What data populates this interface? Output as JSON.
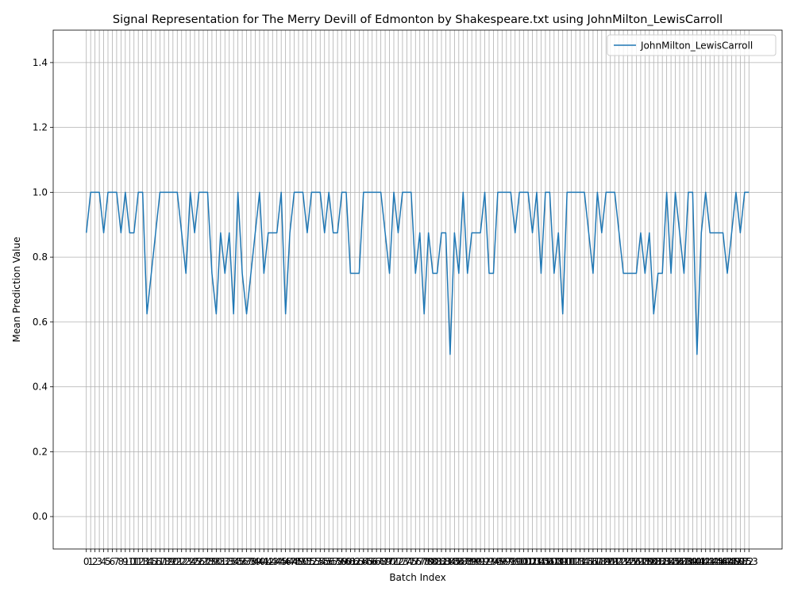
{
  "chart_data": {
    "type": "line",
    "title": "Signal Representation for The Merry Devill of Edmonton by Shakespeare.txt using JohnMilton_LewisCarroll",
    "xlabel": "Batch Index",
    "ylabel": "Mean Prediction Value",
    "x": [
      0,
      1,
      2,
      3,
      4,
      5,
      6,
      7,
      8,
      9,
      10,
      11,
      12,
      13,
      14,
      15,
      16,
      17,
      18,
      19,
      20,
      21,
      22,
      23,
      24,
      25,
      26,
      27,
      28,
      29,
      30,
      31,
      32,
      33,
      34,
      35,
      36,
      37,
      38,
      39,
      40,
      41,
      42,
      43,
      44,
      45,
      46,
      47,
      48,
      49,
      50,
      51,
      52,
      53,
      54,
      55,
      56,
      57,
      58,
      59,
      60,
      61,
      62,
      63,
      64,
      65,
      66,
      67,
      68,
      69,
      70,
      71,
      72,
      73,
      74,
      75,
      76,
      77,
      78,
      79,
      80,
      81,
      82,
      83,
      84,
      85,
      86,
      87,
      88,
      89,
      90,
      91,
      92,
      93,
      94,
      95,
      96,
      97,
      98,
      99,
      100,
      101,
      102,
      103,
      104,
      105,
      106,
      107,
      108,
      109,
      110,
      111,
      112,
      113,
      114,
      115,
      116,
      117,
      118,
      119,
      120,
      121,
      122,
      123,
      124,
      125,
      126,
      127,
      128,
      129,
      130,
      131,
      132,
      133,
      134,
      135,
      136,
      137,
      138,
      139,
      140,
      141,
      142,
      143,
      144,
      145,
      146,
      147,
      148,
      149,
      150,
      151,
      152,
      153
    ],
    "series": [
      {
        "name": "JohnMilton_LewisCarroll",
        "color": "#1f77b4",
        "values": [
          0.875,
          1,
          1,
          1,
          0.875,
          1,
          1,
          1,
          0.875,
          1,
          0.875,
          0.875,
          1,
          1,
          0.625,
          0.75,
          0.875,
          1,
          1,
          1,
          1,
          1,
          0.875,
          0.75,
          1,
          0.875,
          1,
          1,
          1,
          0.75,
          0.625,
          0.875,
          0.75,
          0.875,
          0.625,
          1,
          0.75,
          0.625,
          0.75,
          0.875,
          1,
          0.75,
          0.875,
          0.875,
          0.875,
          1,
          0.625,
          0.875,
          1,
          1,
          1,
          0.875,
          1,
          1,
          1,
          0.875,
          1,
          0.875,
          0.875,
          1,
          1,
          0.75,
          0.75,
          0.75,
          1,
          1,
          1,
          1,
          1,
          0.875,
          0.75,
          1,
          0.875,
          1,
          1,
          1,
          0.75,
          0.875,
          0.625,
          0.875,
          0.75,
          0.75,
          0.875,
          0.875,
          0.5,
          0.875,
          0.75,
          1,
          0.75,
          0.875,
          0.875,
          0.875,
          1,
          0.75,
          0.75,
          1,
          1,
          1,
          1,
          0.875,
          1,
          1,
          1,
          0.875,
          1,
          0.75,
          1,
          1,
          0.75,
          0.875,
          0.625,
          1,
          1,
          1,
          1,
          1,
          0.875,
          0.75,
          1,
          0.875,
          1,
          1,
          1,
          0.875,
          0.75,
          0.75,
          0.75,
          0.75,
          0.875,
          0.75,
          0.875,
          0.625,
          0.75,
          0.75,
          1,
          0.75,
          1,
          0.875,
          0.75,
          1,
          1,
          0.5,
          0.875,
          1,
          0.875,
          0.875,
          0.875,
          0.875,
          0.75,
          0.875,
          1,
          0.875,
          1,
          1
        ]
      }
    ],
    "xlim": [
      -7.65,
      160.65
    ],
    "ylim": [
      -0.1,
      1.5
    ],
    "xticks": [
      0,
      1,
      2,
      3,
      4,
      5,
      6,
      7,
      8,
      9,
      10,
      11,
      12,
      13,
      14,
      15,
      16,
      17,
      18,
      19,
      20,
      21,
      22,
      23,
      24,
      25,
      26,
      27,
      28,
      29,
      30,
      31,
      32,
      33,
      34,
      35,
      36,
      37,
      38,
      39,
      40,
      41,
      42,
      43,
      44,
      45,
      46,
      47,
      48,
      49,
      50,
      51,
      52,
      53,
      54,
      55,
      56,
      57,
      58,
      59,
      60,
      61,
      62,
      63,
      64,
      65,
      66,
      67,
      68,
      69,
      70,
      71,
      72,
      73,
      74,
      75,
      76,
      77,
      78,
      79,
      80,
      81,
      82,
      83,
      84,
      85,
      86,
      87,
      88,
      89,
      90,
      91,
      92,
      93,
      94,
      95,
      96,
      97,
      98,
      99,
      100,
      101,
      102,
      103,
      104,
      105,
      106,
      107,
      108,
      109,
      110,
      111,
      112,
      113,
      114,
      115,
      116,
      117,
      118,
      119,
      120,
      121,
      122,
      123,
      124,
      125,
      126,
      127,
      128,
      129,
      130,
      131,
      132,
      133,
      134,
      135,
      136,
      137,
      138,
      139,
      140,
      141,
      142,
      143,
      144,
      145,
      146,
      147,
      148,
      149,
      150,
      151,
      152,
      153
    ],
    "yticks": [
      {
        "value": 0,
        "label": "0.0"
      },
      {
        "value": 0.2,
        "label": "0.2"
      },
      {
        "value": 0.4,
        "label": "0.4"
      },
      {
        "value": 0.6,
        "label": "0.6"
      },
      {
        "value": 0.8,
        "label": "0.8"
      },
      {
        "value": 1.0,
        "label": "1.0"
      },
      {
        "value": 1.2,
        "label": "1.2"
      },
      {
        "value": 1.4,
        "label": "1.4"
      }
    ],
    "grid": true,
    "legend": "upper right"
  }
}
